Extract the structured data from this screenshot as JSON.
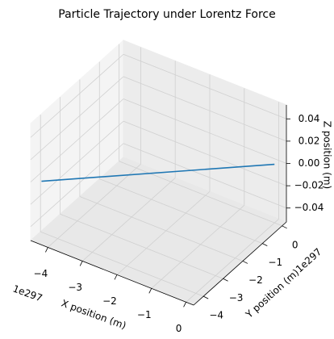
{
  "chart_data": {
    "type": "line3d",
    "title": "Particle Trajectory under Lorentz Force",
    "xlabel": "X position (m)",
    "ylabel": "Y position (m)",
    "zlabel": "Z position (m)",
    "x_offset_label": "1e297",
    "y_offset_label": "1e297",
    "x": [
      0,
      -4.3
    ],
    "y": [
      0,
      -4.3
    ],
    "z": [
      0,
      0
    ],
    "color": "#1f77b4",
    "xlim": [
      -4.5,
      0.22
    ],
    "ylim": [
      -4.5,
      0.22
    ],
    "zlim": [
      -0.0525,
      0.0525
    ],
    "xticks": [
      {
        "value": -4,
        "label": "−4"
      },
      {
        "value": -3,
        "label": "−3"
      },
      {
        "value": -2,
        "label": "−2"
      },
      {
        "value": -1,
        "label": "−1"
      },
      0
    ],
    "yticks": [
      {
        "value": -4,
        "label": "−4"
      },
      {
        "value": -3,
        "label": "−3"
      },
      {
        "value": -2,
        "label": "−2"
      },
      {
        "value": -1,
        "label": "−1"
      },
      0
    ],
    "zticks": [
      {
        "value": -0.04,
        "label": "−0.04"
      },
      {
        "value": -0.02,
        "label": "−0.02"
      },
      {
        "value": 0,
        "label": "0.00"
      },
      0.02,
      0.04
    ],
    "grid": true
  }
}
